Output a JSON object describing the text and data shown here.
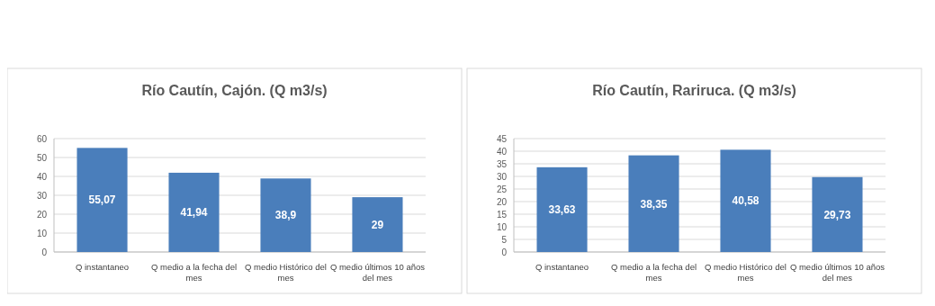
{
  "chart_data": [
    {
      "type": "bar",
      "title": "Río Cautín, Cajón. (Q m3/s)",
      "categories": [
        "Q instantaneo",
        "Q medio a la fecha del mes",
        "Q medio Histórico del mes",
        "Q medio últimos 10 años del mes"
      ],
      "values": [
        55.07,
        41.94,
        38.9,
        29
      ],
      "value_labels": [
        "55,07",
        "41,94",
        "38,9",
        "29"
      ],
      "color": "#4a7ebb",
      "ylim": [
        0,
        60
      ],
      "yticks": [
        0,
        10,
        20,
        30,
        40,
        50,
        60
      ],
      "grid": "y"
    },
    {
      "type": "bar",
      "title": "Río Cautín, Rariruca. (Q m3/s)",
      "categories": [
        "Q instantaneo",
        "Q medio a la fecha del mes",
        "Q medio Histórico del mes",
        "Q medio últimos 10 años del mes"
      ],
      "values": [
        33.63,
        38.35,
        40.58,
        29.73
      ],
      "value_labels": [
        "33,63",
        "38,35",
        "40,58",
        "29,73"
      ],
      "color": "#4a7ebb",
      "ylim": [
        0,
        45
      ],
      "yticks": [
        0,
        5,
        10,
        15,
        20,
        25,
        30,
        35,
        40,
        45
      ],
      "grid": "y"
    }
  ]
}
